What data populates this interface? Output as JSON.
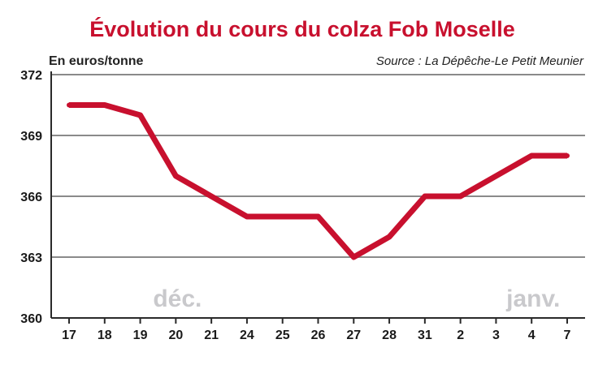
{
  "chart_data": {
    "type": "line",
    "title": "Évolution du cours du colza Fob Moselle",
    "ylabel": "En euros/tonne",
    "source": "Source : La Dépêche-Le Petit Meunier",
    "xlabel": "",
    "categories": [
      "17",
      "18",
      "19",
      "20",
      "21",
      "24",
      "25",
      "26",
      "27",
      "28",
      "31",
      "2",
      "3",
      "4",
      "7"
    ],
    "series": [
      {
        "values": [
          370.5,
          370.5,
          370,
          367,
          366,
          365,
          365,
          365,
          363,
          364,
          366,
          366,
          367,
          368,
          368
        ]
      }
    ],
    "ylim": [
      360,
      372
    ],
    "yticks": [
      "360",
      "363",
      "366",
      "369",
      "372"
    ],
    "month_labels": [
      "déc.",
      "janv."
    ],
    "grid": true,
    "colors": {
      "title": "#c8102e",
      "line": "#c8102e",
      "grid": "#8a8a8a",
      "axis": "#2a2a2a",
      "month": "#c9c9cc"
    }
  }
}
